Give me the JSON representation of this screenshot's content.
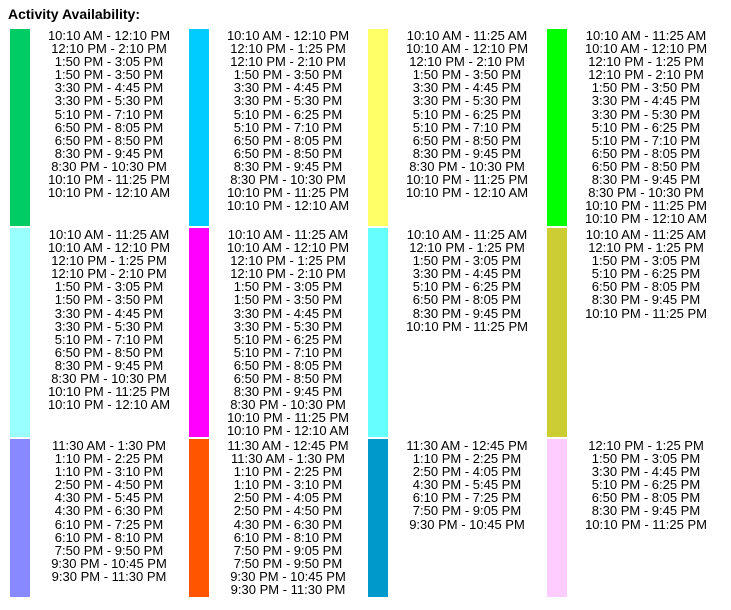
{
  "title": "Activity Availability:",
  "rows": [
    {
      "cells": [
        {
          "color": "#00cc66",
          "times": [
            "10:10 AM - 12:10 PM",
            "12:10 PM - 2:10 PM",
            "1:50 PM - 3:05 PM",
            "1:50 PM - 3:50 PM",
            "3:30 PM - 4:45 PM",
            "3:30 PM - 5:30 PM",
            "5:10 PM - 7:10 PM",
            "6:50 PM - 8:05 PM",
            "6:50 PM - 8:50 PM",
            "8:30 PM - 9:45 PM",
            "8:30 PM - 10:30 PM",
            "10:10 PM - 11:25 PM",
            "10:10 PM - 12:10 AM"
          ]
        },
        {
          "color": "#00ccff",
          "times": [
            "10:10 AM - 12:10 PM",
            "12:10 PM - 1:25 PM",
            "12:10 PM - 2:10 PM",
            "1:50 PM - 3:50 PM",
            "3:30 PM - 4:45 PM",
            "3:30 PM - 5:30 PM",
            "5:10 PM - 6:25 PM",
            "5:10 PM - 7:10 PM",
            "6:50 PM - 8:05 PM",
            "6:50 PM - 8:50 PM",
            "8:30 PM - 9:45 PM",
            "8:30 PM - 10:30 PM",
            "10:10 PM - 11:25 PM",
            "10:10 PM - 12:10 AM"
          ]
        },
        {
          "color": "#ffff66",
          "times": [
            "10:10 AM - 11:25 AM",
            "10:10 AM - 12:10 PM",
            "12:10 PM - 2:10 PM",
            "1:50 PM - 3:50 PM",
            "3:30 PM - 4:45 PM",
            "3:30 PM - 5:30 PM",
            "5:10 PM - 6:25 PM",
            "5:10 PM - 7:10 PM",
            "6:50 PM - 8:50 PM",
            "8:30 PM - 9:45 PM",
            "8:30 PM - 10:30 PM",
            "10:10 PM - 11:25 PM",
            "10:10 PM - 12:10 AM"
          ]
        },
        {
          "color": "#00ff00",
          "times": [
            "10:10 AM - 11:25 AM",
            "10:10 AM - 12:10 PM",
            "12:10 PM - 1:25 PM",
            "12:10 PM - 2:10 PM",
            "1:50 PM - 3:50 PM",
            "3:30 PM - 4:45 PM",
            "3:30 PM - 5:30 PM",
            "5:10 PM - 6:25 PM",
            "5:10 PM - 7:10 PM",
            "6:50 PM - 8:05 PM",
            "6:50 PM - 8:50 PM",
            "8:30 PM - 9:45 PM",
            "8:30 PM - 10:30 PM",
            "10:10 PM - 11:25 PM",
            "10:10 PM - 12:10 AM"
          ]
        }
      ]
    },
    {
      "cells": [
        {
          "color": "#99ffff",
          "times": [
            "10:10 AM - 11:25 AM",
            "10:10 AM - 12:10 PM",
            "12:10 PM - 1:25 PM",
            "12:10 PM - 2:10 PM",
            "1:50 PM - 3:05 PM",
            "1:50 PM - 3:50 PM",
            "3:30 PM - 4:45 PM",
            "3:30 PM - 5:30 PM",
            "5:10 PM - 7:10 PM",
            "6:50 PM - 8:50 PM",
            "8:30 PM - 9:45 PM",
            "8:30 PM - 10:30 PM",
            "10:10 PM - 11:25 PM",
            "10:10 PM - 12:10 AM"
          ]
        },
        {
          "color": "#ff00ff",
          "times": [
            "10:10 AM - 11:25 AM",
            "10:10 AM - 12:10 PM",
            "12:10 PM - 1:25 PM",
            "12:10 PM - 2:10 PM",
            "1:50 PM - 3:05 PM",
            "1:50 PM - 3:50 PM",
            "3:30 PM - 4:45 PM",
            "3:30 PM - 5:30 PM",
            "5:10 PM - 6:25 PM",
            "5:10 PM - 7:10 PM",
            "6:50 PM - 8:05 PM",
            "6:50 PM - 8:50 PM",
            "8:30 PM - 9:45 PM",
            "8:30 PM - 10:30 PM",
            "10:10 PM - 11:25 PM",
            "10:10 PM - 12:10 AM"
          ]
        },
        {
          "color": "#66ffff",
          "times": [
            "10:10 AM - 11:25 AM",
            "12:10 PM - 1:25 PM",
            "1:50 PM - 3:05 PM",
            "3:30 PM - 4:45 PM",
            "5:10 PM - 6:25 PM",
            "6:50 PM - 8:05 PM",
            "8:30 PM - 9:45 PM",
            "10:10 PM - 11:25 PM"
          ]
        },
        {
          "color": "#cccc33",
          "times": [
            "10:10 AM - 11:25 AM",
            "12:10 PM - 1:25 PM",
            "1:50 PM - 3:05 PM",
            "5:10 PM - 6:25 PM",
            "6:50 PM - 8:05 PM",
            "8:30 PM - 9:45 PM",
            "10:10 PM - 11:25 PM"
          ]
        }
      ]
    },
    {
      "cells": [
        {
          "color": "#8888ff",
          "times": [
            "11:30 AM - 1:30 PM",
            "1:10 PM - 2:25 PM",
            "1:10 PM - 3:10 PM",
            "2:50 PM - 4:50 PM",
            "4:30 PM - 5:45 PM",
            "4:30 PM - 6:30 PM",
            "6:10 PM - 7:25 PM",
            "6:10 PM - 8:10 PM",
            "7:50 PM - 9:50 PM",
            "9:30 PM - 10:45 PM",
            "9:30 PM - 11:30 PM"
          ]
        },
        {
          "color": "#ff5500",
          "times": [
            "11:30 AM - 12:45 PM",
            "11:30 AM - 1:30 PM",
            "1:10 PM - 2:25 PM",
            "1:10 PM - 3:10 PM",
            "2:50 PM - 4:05 PM",
            "2:50 PM - 4:50 PM",
            "4:30 PM - 6:30 PM",
            "6:10 PM - 8:10 PM",
            "7:50 PM - 9:05 PM",
            "7:50 PM - 9:50 PM",
            "9:30 PM - 10:45 PM",
            "9:30 PM - 11:30 PM"
          ]
        },
        {
          "color": "#0099cc",
          "times": [
            "11:30 AM - 12:45 PM",
            "1:10 PM - 2:25 PM",
            "2:50 PM - 4:05 PM",
            "4:30 PM - 5:45 PM",
            "6:10 PM - 7:25 PM",
            "7:50 PM - 9:05 PM",
            "9:30 PM - 10:45 PM"
          ]
        },
        {
          "color": "#ffccff",
          "times": [
            "12:10 PM - 1:25 PM",
            "1:50 PM - 3:05 PM",
            "3:30 PM - 4:45 PM",
            "5:10 PM - 6:25 PM",
            "6:50 PM - 8:05 PM",
            "8:30 PM - 9:45 PM",
            "10:10 PM - 11:25 PM"
          ]
        }
      ]
    }
  ]
}
